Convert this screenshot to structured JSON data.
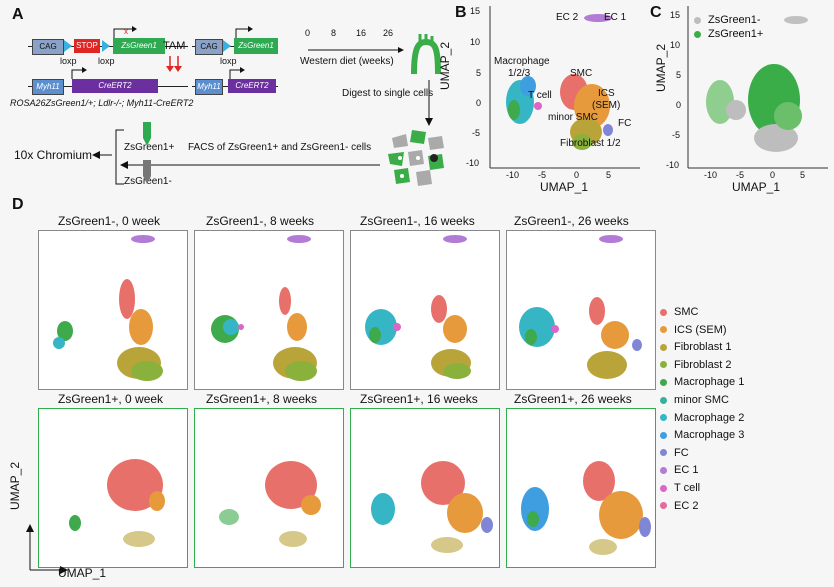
{
  "panels": {
    "a": "A",
    "b": "B",
    "c": "C",
    "d": "D"
  },
  "panelA": {
    "cag": "CAG",
    "stop": "STOP",
    "zsgreen": "ZsGreen1",
    "myh11": "Myh11",
    "creert2": "CreERT2",
    "loxp": "loxp",
    "tam": "TAM",
    "genotype": "ROSA26ZsGreen1/+; Ldlr-/-; Myh11-CreERT2",
    "diet_ticks": [
      "0",
      "8",
      "16",
      "26"
    ],
    "diet_label": "Western diet (weeks)",
    "digest": "Digest to single cells",
    "facs": "FACS of ZsGreen1+ and ZsGreen1- cells",
    "chromium": "10x Chromium",
    "zs_pos": "ZsGreen1+",
    "zs_neg": "ZsGreen1-"
  },
  "panelB": {
    "xlabel": "UMAP_1",
    "ylabel": "UMAP_2",
    "xticks": [
      "-10",
      "-5",
      "0",
      "5"
    ],
    "yticks": [
      "15",
      "10",
      "5",
      "0",
      "-5",
      "-10"
    ],
    "labels": {
      "ec2": "EC 2",
      "ec1": "EC 1",
      "macrophage": "Macrophage",
      "mac_num": "1/2/3",
      "tcell": "T cell",
      "smc": "SMC",
      "ics": "ICS",
      "sem": "(SEM)",
      "minor_smc": "minor SMC",
      "fc": "FC",
      "fibroblast": "Fibroblast 1/2"
    }
  },
  "panelC": {
    "xlabel": "UMAP_1",
    "ylabel": "UMAP_2",
    "xticks": [
      "-10",
      "-5",
      "0",
      "5"
    ],
    "yticks": [
      "15",
      "10",
      "5",
      "0",
      "-5",
      "-10"
    ],
    "legend": [
      "ZsGreen1-",
      "ZsGreen1+"
    ],
    "legend_colors": [
      "#bdbdbd",
      "#3aad49"
    ]
  },
  "panelD": {
    "row1": [
      "ZsGreen1-, 0 week",
      "ZsGreen1-, 8 weeks",
      "ZsGreen1-, 16 weeks",
      "ZsGreen1-, 26 weeks"
    ],
    "row2": [
      "ZsGreen1+, 0 week",
      "ZsGreen1+, 8 weeks",
      "ZsGreen1+, 16 weeks",
      "ZsGreen1+, 26 weeks"
    ],
    "xlabel": "UMAP_1",
    "ylabel": "UMAP_2",
    "legend": [
      {
        "label": "SMC",
        "color": "#e8706a"
      },
      {
        "label": "ICS (SEM)",
        "color": "#e79a3b"
      },
      {
        "label": "Fibroblast 1",
        "color": "#b9a43a"
      },
      {
        "label": "Fibroblast 2",
        "color": "#8bb13d"
      },
      {
        "label": "Macrophage 1",
        "color": "#3eaa4c"
      },
      {
        "label": "minor SMC",
        "color": "#35b39a"
      },
      {
        "label": "Macrophage 2",
        "color": "#36b6c4"
      },
      {
        "label": "Macrophage 3",
        "color": "#3e9ee0"
      },
      {
        "label": "FC",
        "color": "#7f86d6"
      },
      {
        "label": "EC 1",
        "color": "#b27cd6"
      },
      {
        "label": "T cell",
        "color": "#db66c7"
      },
      {
        "label": "EC 2",
        "color": "#e56b9e"
      }
    ]
  }
}
